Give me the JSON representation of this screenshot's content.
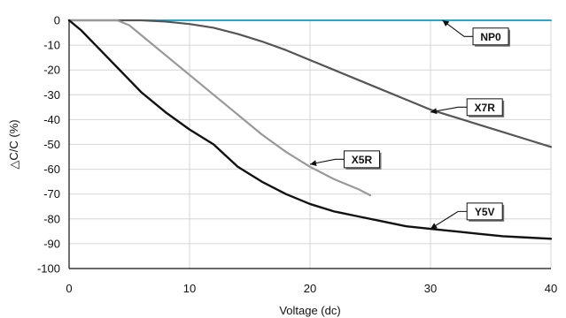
{
  "chart_data": {
    "type": "line",
    "title": "",
    "xlabel": "Voltage (dc)",
    "ylabel": "△C/C (%)",
    "xlim": [
      0,
      40
    ],
    "ylim": [
      -100,
      0
    ],
    "x_ticks": [
      "0",
      "10",
      "20",
      "30",
      "40"
    ],
    "y_ticks": [
      "0",
      "-10",
      "-20",
      "-30",
      "-40",
      "-50",
      "-60",
      "-70",
      "-80",
      "-90",
      "-100"
    ],
    "grid": true,
    "series": [
      {
        "name": "NP0",
        "color": "#2aa7c9",
        "points": [
          [
            0,
            0
          ],
          [
            40,
            0
          ]
        ]
      },
      {
        "name": "X7R",
        "color": "#555555",
        "points": [
          [
            0,
            0
          ],
          [
            3,
            0
          ],
          [
            6,
            0
          ],
          [
            8,
            -0.5
          ],
          [
            10,
            -1.5
          ],
          [
            12,
            -3
          ],
          [
            14,
            -5.5
          ],
          [
            16,
            -8.5
          ],
          [
            18,
            -12
          ],
          [
            20,
            -16
          ],
          [
            22,
            -20
          ],
          [
            24,
            -24
          ],
          [
            26,
            -28
          ],
          [
            28,
            -32
          ],
          [
            30,
            -36
          ],
          [
            32,
            -39
          ],
          [
            34,
            -42
          ],
          [
            36,
            -45
          ],
          [
            38,
            -48
          ],
          [
            40,
            -51
          ]
        ]
      },
      {
        "name": "X5R",
        "color": "#999999",
        "points": [
          [
            0,
            0
          ],
          [
            3,
            0
          ],
          [
            4,
            0
          ],
          [
            5,
            -2
          ],
          [
            6,
            -6
          ],
          [
            7,
            -10
          ],
          [
            8,
            -14
          ],
          [
            10,
            -22
          ],
          [
            12,
            -30
          ],
          [
            14,
            -38
          ],
          [
            16,
            -46
          ],
          [
            18,
            -53
          ],
          [
            20,
            -59
          ],
          [
            22,
            -64
          ],
          [
            24,
            -68
          ],
          [
            25,
            -70.5
          ]
        ]
      },
      {
        "name": "Y5V",
        "color": "#111111",
        "points": [
          [
            0,
            0
          ],
          [
            1,
            -4
          ],
          [
            2,
            -9
          ],
          [
            3,
            -14
          ],
          [
            4,
            -19
          ],
          [
            5,
            -24
          ],
          [
            6,
            -29
          ],
          [
            8,
            -37
          ],
          [
            10,
            -44
          ],
          [
            12,
            -50
          ],
          [
            14,
            -59
          ],
          [
            16,
            -65
          ],
          [
            18,
            -70
          ],
          [
            20,
            -74
          ],
          [
            22,
            -77
          ],
          [
            24,
            -79
          ],
          [
            26,
            -81
          ],
          [
            28,
            -83
          ],
          [
            30,
            -84
          ],
          [
            32,
            -85
          ],
          [
            34,
            -86
          ],
          [
            36,
            -87
          ],
          [
            38,
            -87.5
          ],
          [
            40,
            -88
          ]
        ]
      }
    ],
    "annotations": [
      {
        "text": "NP0",
        "series": "NP0",
        "point": [
          31,
          0
        ],
        "box": [
          35,
          -6.5
        ]
      },
      {
        "text": "X7R",
        "series": "X7R",
        "point": [
          30,
          -37
        ],
        "box": [
          34.5,
          -35
        ]
      },
      {
        "text": "X5R",
        "series": "X5R",
        "point": [
          20,
          -58
        ],
        "box": [
          24.3,
          -56
        ]
      },
      {
        "text": "Y5V",
        "series": "Y5V",
        "point": [
          30,
          -84
        ],
        "box": [
          34.5,
          -77
        ]
      }
    ]
  }
}
